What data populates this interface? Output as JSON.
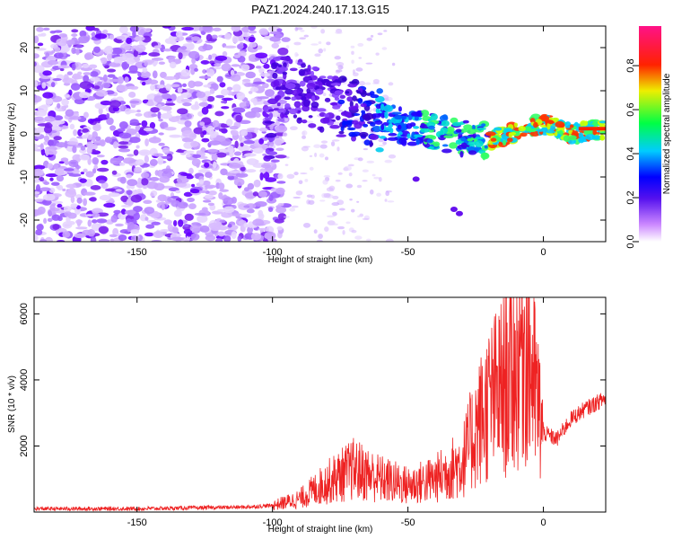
{
  "title": "PAZ1.2024.240.17.13.G15",
  "chart_data": [
    {
      "type": "heatmap",
      "xlabel": "Height of straight line (km)",
      "ylabel": "Frequency (Hz)",
      "xlim": [
        -188,
        23
      ],
      "ylim": [
        -25,
        25
      ],
      "xticks": [
        -150,
        -100,
        -50,
        0
      ],
      "yticks": [
        -20,
        -10,
        0,
        10,
        20
      ],
      "colorbar": {
        "label": "Normalized spectral amplitude",
        "range": [
          0,
          0.98
        ],
        "ticks": [
          0.0,
          0.2,
          0.4,
          0.6,
          0.8
        ],
        "tick_labels": [
          "0.0",
          "0.2",
          "0.4",
          "0.6",
          "0.8"
        ]
      },
      "ridge": {
        "description_points_x": [
          -100,
          -90,
          -80,
          -70,
          -60,
          -50,
          -40,
          -30,
          -20,
          -10,
          0,
          10,
          20
        ],
        "frequency_hz": [
          12,
          10,
          7.5,
          5.5,
          3,
          1.5,
          0.5,
          -1,
          -1.5,
          0.5,
          2.5,
          0,
          1
        ]
      }
    },
    {
      "type": "line",
      "xlabel": "Height of straight line (km)",
      "ylabel": "SNR (10 * v/v)",
      "xlim": [
        -188,
        23
      ],
      "ylim": [
        0,
        6500
      ],
      "xticks": [
        -150,
        -100,
        -50,
        0
      ],
      "yticks": [
        2000,
        4000,
        6000
      ],
      "series": [
        {
          "color": "#ee2222",
          "x": [
            -188,
            -150,
            -110,
            -100,
            -90,
            -80,
            -70,
            -60,
            -50,
            -40,
            -30,
            -25,
            -20,
            -15,
            -10,
            -8,
            -5,
            -2,
            0,
            5,
            10,
            15,
            23
          ],
          "values": [
            100,
            100,
            150,
            200,
            400,
            900,
            1300,
            1000,
            800,
            1000,
            1500,
            2500,
            3300,
            3800,
            4300,
            5400,
            4600,
            3200,
            2400,
            2200,
            2800,
            3100,
            3450
          ]
        }
      ]
    }
  ]
}
